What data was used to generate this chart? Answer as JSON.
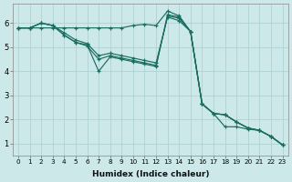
{
  "xlabel": "Humidex (Indice chaleur)",
  "ylabel": "",
  "background_color": "#cce8e8",
  "line_color": "#1a6e60",
  "grid_color": "#aacece",
  "xlim": [
    -0.5,
    23.5
  ],
  "ylim": [
    0.5,
    6.8
  ],
  "xticks": [
    0,
    1,
    2,
    3,
    4,
    5,
    6,
    7,
    8,
    9,
    10,
    11,
    12,
    13,
    14,
    15,
    16,
    17,
    18,
    19,
    20,
    21,
    22,
    23
  ],
  "yticks": [
    1,
    2,
    3,
    4,
    5,
    6
  ],
  "lines": [
    {
      "x": [
        0,
        1,
        2,
        3,
        4,
        5,
        6,
        7,
        8,
        9,
        10,
        11,
        12,
        13,
        14,
        15,
        16,
        17,
        18,
        19,
        20,
        21,
        22,
        23
      ],
      "y": [
        5.8,
        5.8,
        5.8,
        5.8,
        5.8,
        5.8,
        5.8,
        5.8,
        5.8,
        5.8,
        5.9,
        5.95,
        5.9,
        6.5,
        6.3,
        5.65,
        2.65,
        2.25,
        1.7,
        1.7,
        1.6,
        1.55,
        1.3,
        0.95
      ]
    },
    {
      "x": [
        0,
        1,
        2,
        3,
        4,
        5,
        6,
        7,
        8,
        9,
        10,
        11,
        12,
        13,
        14,
        15,
        16,
        17,
        18,
        19,
        20,
        21,
        22,
        23
      ],
      "y": [
        5.8,
        5.8,
        6.0,
        5.9,
        5.5,
        5.2,
        5.1,
        4.0,
        4.6,
        4.5,
        4.4,
        4.3,
        4.2,
        6.35,
        6.25,
        5.65,
        2.65,
        2.25,
        2.2,
        1.9,
        1.65,
        1.55,
        1.3,
        0.95
      ]
    },
    {
      "x": [
        0,
        1,
        2,
        3,
        4,
        5,
        6,
        7,
        8,
        9,
        10,
        11,
        12,
        13,
        14,
        15,
        16,
        17,
        18,
        19,
        20,
        21,
        22,
        23
      ],
      "y": [
        5.8,
        5.8,
        6.0,
        5.9,
        5.5,
        5.2,
        5.05,
        4.5,
        4.65,
        4.55,
        4.45,
        4.35,
        4.25,
        6.3,
        6.2,
        5.65,
        2.65,
        2.25,
        2.2,
        1.9,
        1.65,
        1.55,
        1.3,
        0.95
      ]
    },
    {
      "x": [
        0,
        1,
        2,
        3,
        4,
        5,
        6,
        7,
        8,
        9,
        10,
        11,
        12,
        13,
        14,
        15,
        16,
        17,
        18,
        19,
        20,
        21,
        22,
        23
      ],
      "y": [
        5.8,
        5.8,
        6.0,
        5.9,
        5.6,
        5.3,
        5.15,
        4.65,
        4.75,
        4.65,
        4.55,
        4.45,
        4.35,
        6.25,
        6.1,
        5.65,
        2.65,
        2.25,
        2.2,
        1.9,
        1.65,
        1.55,
        1.3,
        0.95
      ]
    }
  ]
}
